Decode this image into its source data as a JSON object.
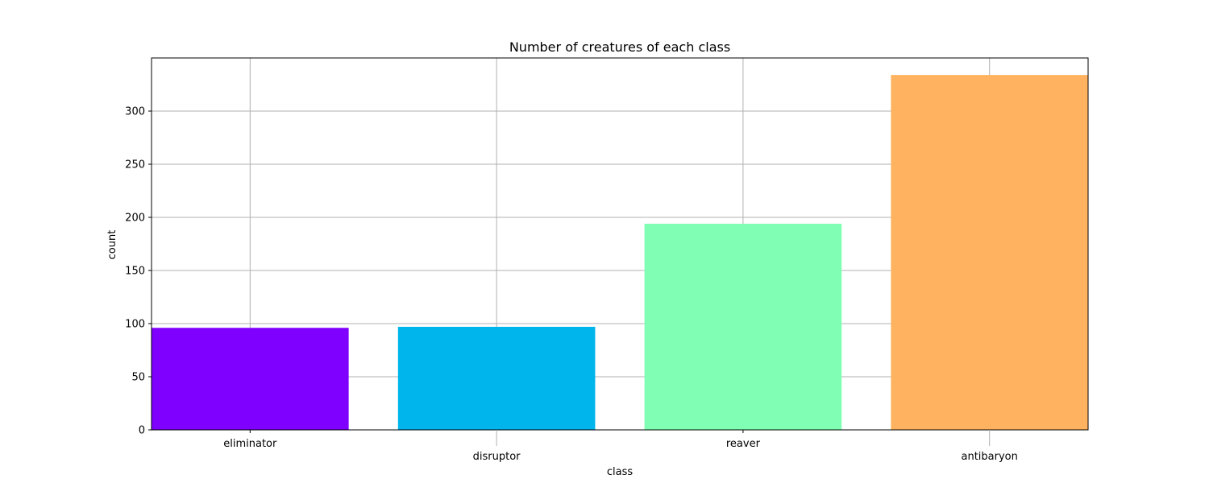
{
  "chart_data": {
    "type": "bar",
    "title": "Number of creatures of each class",
    "xlabel": "class",
    "ylabel": "count",
    "categories": [
      "eliminator",
      "disruptor",
      "reaver",
      "antibaryon"
    ],
    "values": [
      96,
      97,
      194,
      334
    ],
    "colors": [
      "#8000ff",
      "#00b5eb",
      "#80ffb4",
      "#ffb360"
    ],
    "ylim": [
      0,
      350
    ],
    "yticks": [
      0,
      50,
      100,
      150,
      200,
      250,
      300
    ],
    "ytick_labels": [
      "0",
      "50",
      "100",
      "150",
      "200",
      "250",
      "300"
    ],
    "grid": true,
    "legend": "none"
  }
}
